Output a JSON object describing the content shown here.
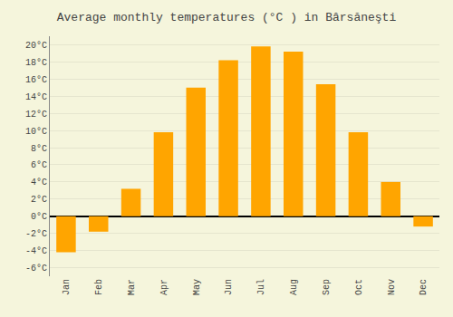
{
  "chart_data": {
    "type": "bar",
    "title": "Average monthly temperatures (°C ) in Bârsăneşti",
    "categories": [
      "Jan",
      "Feb",
      "Mar",
      "Apr",
      "May",
      "Jun",
      "Jul",
      "Aug",
      "Sep",
      "Oct",
      "Nov",
      "Dec"
    ],
    "values": [
      -4.2,
      -1.8,
      3.2,
      9.8,
      15.0,
      18.2,
      19.8,
      19.2,
      15.4,
      9.8,
      4.0,
      -1.2
    ],
    "color": "#FFA500",
    "ylim": [
      -7,
      21
    ],
    "yticks": [
      {
        "value": -6,
        "label": "-6°C"
      },
      {
        "value": -4,
        "label": "-4°C"
      },
      {
        "value": -2,
        "label": "-2°C"
      },
      {
        "value": 0,
        "label": "0°C"
      },
      {
        "value": 2,
        "label": "2°C"
      },
      {
        "value": 4,
        "label": "4°C"
      },
      {
        "value": 6,
        "label": "6°C"
      },
      {
        "value": 8,
        "label": "8°C"
      },
      {
        "value": 10,
        "label": "10°C"
      },
      {
        "value": 12,
        "label": "12°C"
      },
      {
        "value": 14,
        "label": "14°C"
      },
      {
        "value": 16,
        "label": "16°C"
      },
      {
        "value": 18,
        "label": "18°C"
      },
      {
        "value": 20,
        "label": "20°C"
      }
    ],
    "grid": true
  }
}
